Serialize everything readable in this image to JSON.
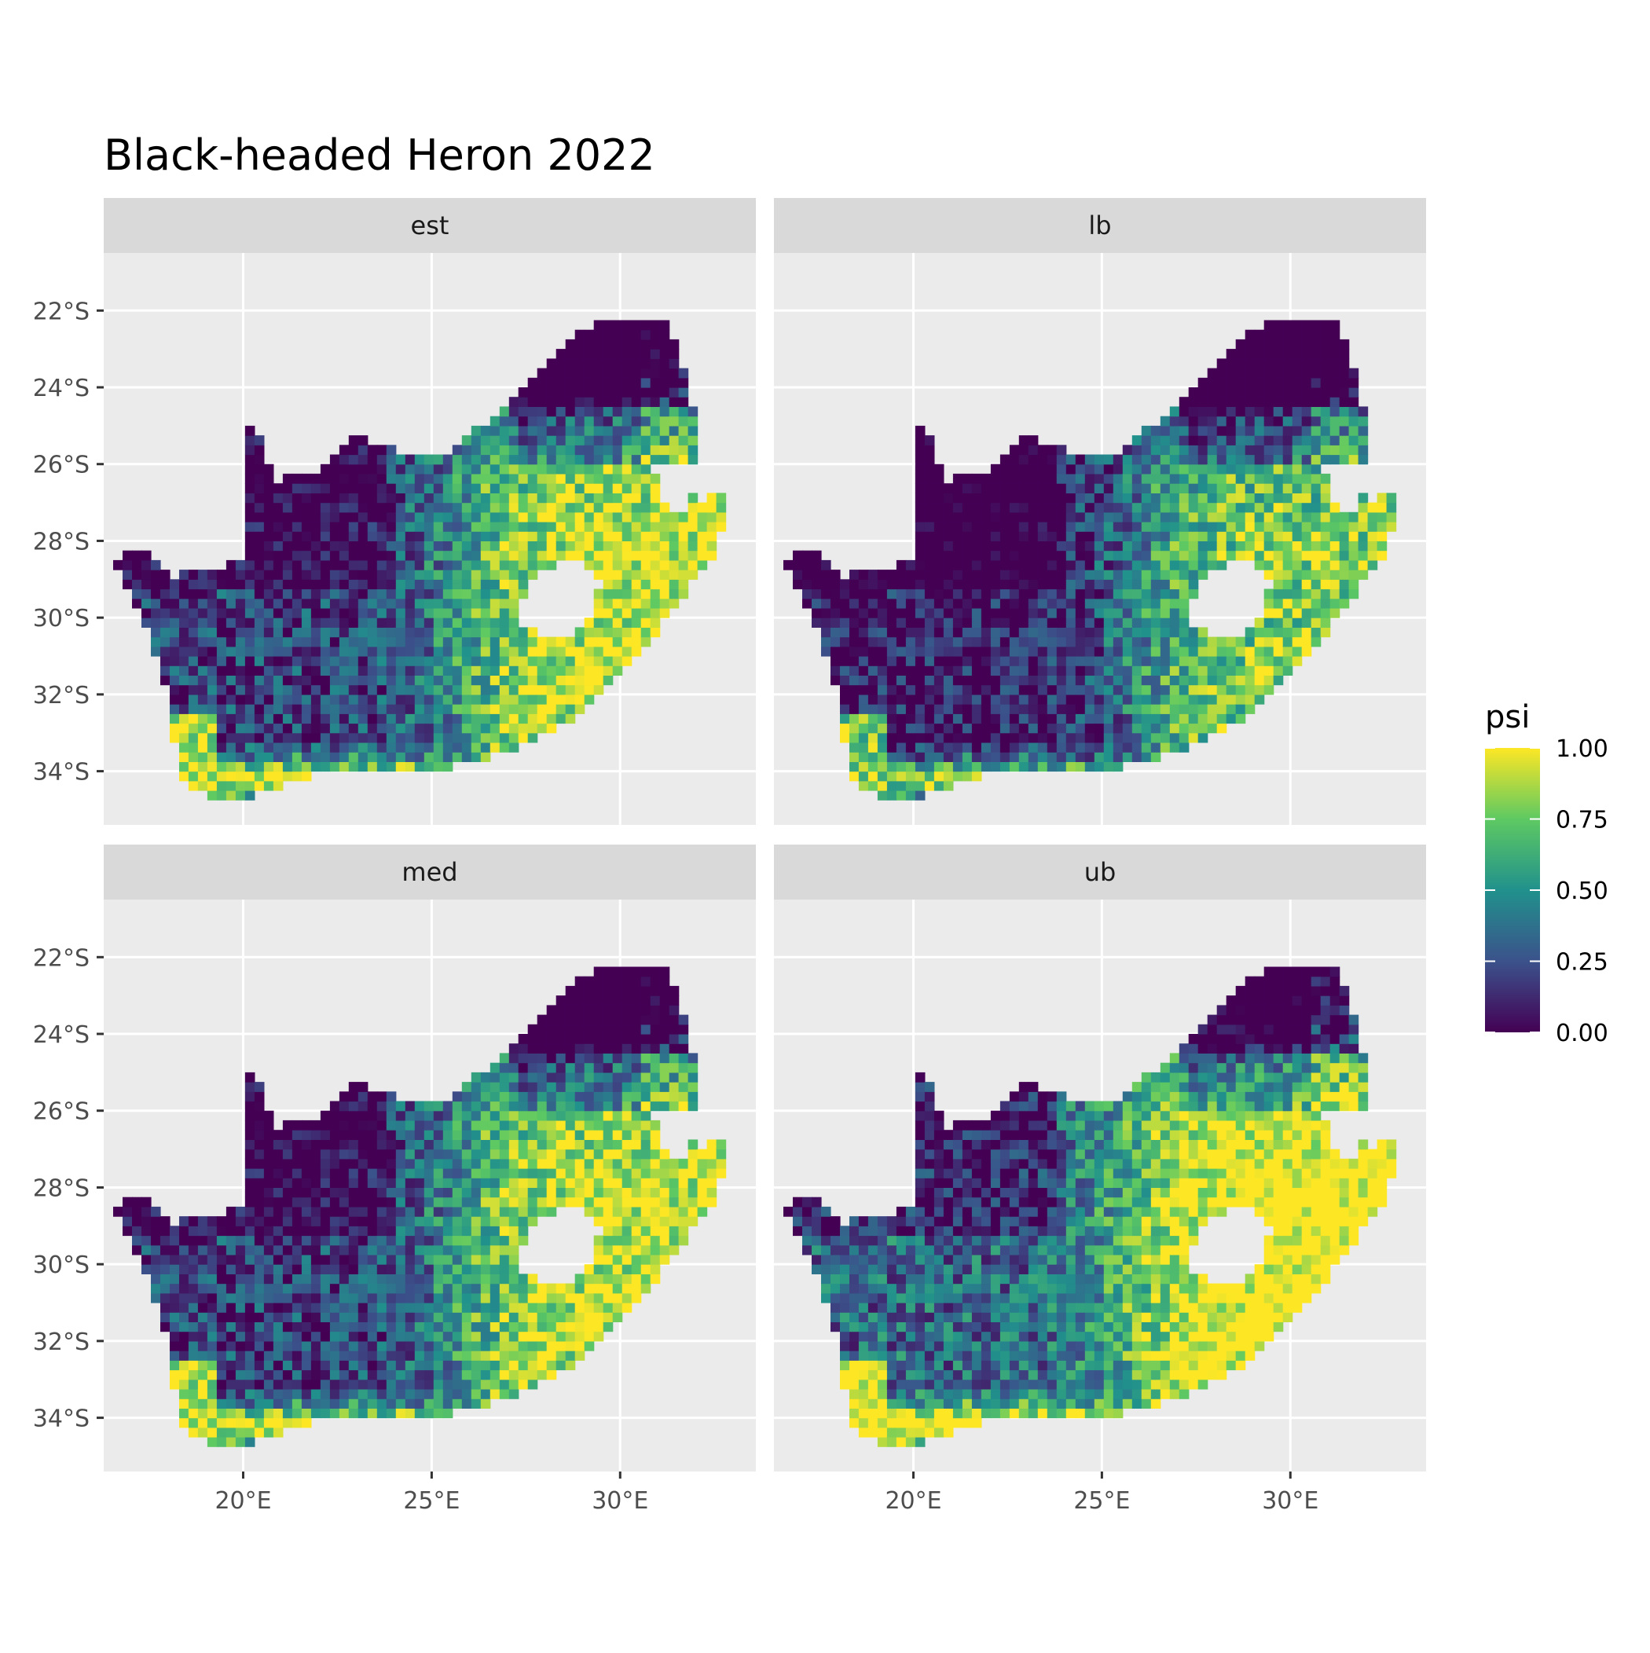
{
  "chart_data": {
    "type": "heatmap",
    "title": "Black-headed Heron 2022",
    "xlabel": "",
    "ylabel": "",
    "xlim": [
      16.3,
      33.6
    ],
    "ylim": [
      -35.4,
      -20.5
    ],
    "x_ticks": [
      {
        "value": 20,
        "label": "20°E"
      },
      {
        "value": 25,
        "label": "25°E"
      },
      {
        "value": 30,
        "label": "30°E"
      }
    ],
    "y_ticks": [
      {
        "value": -22,
        "label": "22°S"
      },
      {
        "value": -24,
        "label": "24°S"
      },
      {
        "value": -26,
        "label": "26°S"
      },
      {
        "value": -28,
        "label": "28°S"
      },
      {
        "value": -30,
        "label": "30°S"
      },
      {
        "value": -32,
        "label": "32°S"
      },
      {
        "value": -34,
        "label": "34°S"
      }
    ],
    "grid": true,
    "facets": [
      {
        "name": "est",
        "offset": 0.0
      },
      {
        "name": "lb",
        "offset": -0.13
      },
      {
        "name": "med",
        "offset": 0.0
      },
      {
        "name": "ub",
        "offset": 0.14
      }
    ],
    "legend": {
      "title": "psi",
      "position": "right",
      "scale": "viridis",
      "ticks": [
        {
          "value": 0.0,
          "label": "0.00"
        },
        {
          "value": 0.25,
          "label": "0.25"
        },
        {
          "value": 0.5,
          "label": "0.50"
        },
        {
          "value": 0.75,
          "label": "0.75"
        },
        {
          "value": 1.0,
          "label": "1.00"
        }
      ]
    },
    "colors": {
      "panel_bg": "#ebebeb",
      "strip_bg": "#d9d9d9",
      "grid": "#ffffff",
      "viridis": [
        "#440154",
        "#3b528b",
        "#21918c",
        "#5ec962",
        "#fde725"
      ]
    },
    "outline_lonlat": [
      [
        20.0,
        -24.8
      ],
      [
        20.4,
        -25.3
      ],
      [
        20.8,
        -26.4
      ],
      [
        22.0,
        -26.3
      ],
      [
        23.0,
        -25.3
      ],
      [
        24.5,
        -25.8
      ],
      [
        25.6,
        -25.6
      ],
      [
        26.8,
        -24.6
      ],
      [
        27.8,
        -23.6
      ],
      [
        29.4,
        -22.2
      ],
      [
        31.3,
        -22.3
      ],
      [
        31.7,
        -23.6
      ],
      [
        32.0,
        -24.8
      ],
      [
        32.0,
        -26.0
      ],
      [
        31.2,
        -26.7
      ],
      [
        32.1,
        -26.9
      ],
      [
        32.9,
        -26.8
      ],
      [
        32.5,
        -28.4
      ],
      [
        31.5,
        -29.6
      ],
      [
        30.4,
        -31.1
      ],
      [
        29.0,
        -32.5
      ],
      [
        27.5,
        -33.3
      ],
      [
        26.0,
        -33.8
      ],
      [
        25.0,
        -34.0
      ],
      [
        24.0,
        -34.1
      ],
      [
        23.0,
        -34.0
      ],
      [
        22.0,
        -34.1
      ],
      [
        20.7,
        -34.5
      ],
      [
        19.9,
        -34.8
      ],
      [
        19.0,
        -34.6
      ],
      [
        18.4,
        -34.3
      ],
      [
        18.1,
        -32.8
      ],
      [
        17.9,
        -31.5
      ],
      [
        17.1,
        -29.5
      ],
      [
        16.5,
        -28.6
      ],
      [
        17.3,
        -28.1
      ],
      [
        18.0,
        -28.9
      ],
      [
        19.2,
        -28.8
      ],
      [
        20.0,
        -28.4
      ],
      [
        20.0,
        -24.8
      ]
    ],
    "lesotho_lonlat": [
      [
        28.4,
        -28.6
      ],
      [
        29.0,
        -28.6
      ],
      [
        29.5,
        -29.0
      ],
      [
        29.3,
        -29.9
      ],
      [
        28.7,
        -30.5
      ],
      [
        28.0,
        -30.6
      ],
      [
        27.3,
        -30.1
      ],
      [
        27.5,
        -29.2
      ],
      [
        28.0,
        -28.8
      ],
      [
        28.4,
        -28.6
      ]
    ],
    "swaziland_lonlat": [
      [
        30.9,
        -26.0
      ],
      [
        31.8,
        -25.9
      ],
      [
        32.1,
        -26.4
      ],
      [
        31.8,
        -27.2
      ],
      [
        31.0,
        -27.1
      ],
      [
        30.9,
        -26.0
      ]
    ]
  }
}
